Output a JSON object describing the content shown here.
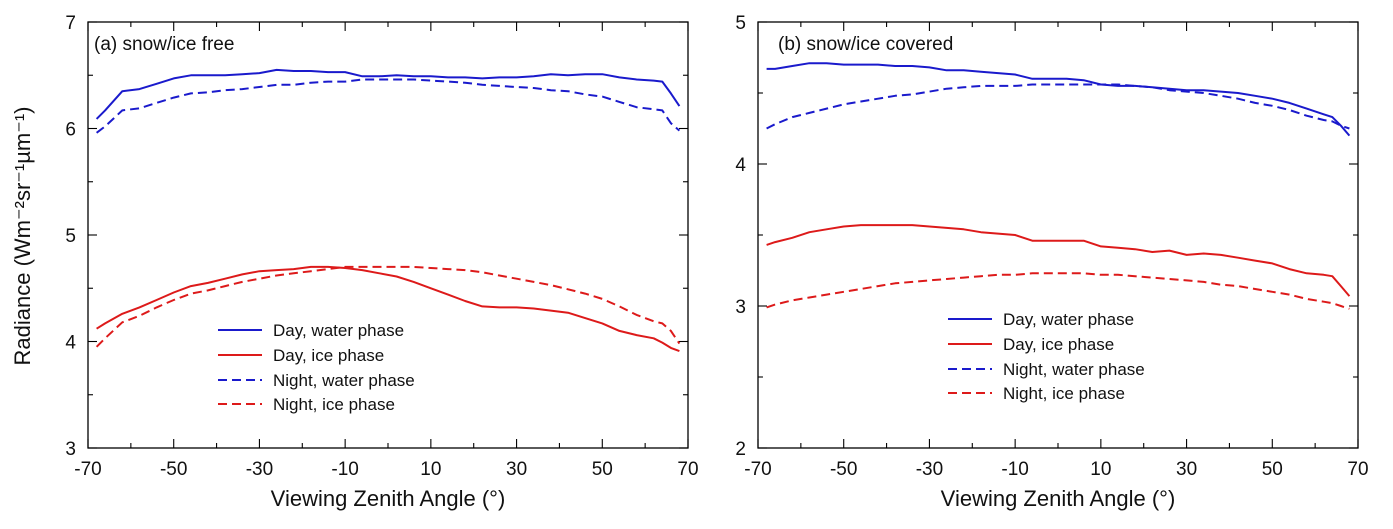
{
  "figure": {
    "ylabel": "Radiance (Wm⁻²sr⁻¹µm⁻¹)",
    "xlabel": "Viewing Zenith Angle (°)"
  },
  "legend": {
    "entries": [
      "Day, water phase",
      "Day, ice phase",
      "Night, water phase",
      "Night, ice phase"
    ]
  },
  "colors": {
    "water": "#1a1acc",
    "ice": "#dd1a1a"
  },
  "chart_data": [
    {
      "type": "line",
      "title": "(a) snow/ice free",
      "xlabel": "Viewing Zenith Angle (°)",
      "ylabel": "Radiance (Wm⁻²sr⁻¹µm⁻¹)",
      "xlim": [
        -70,
        70
      ],
      "ylim": [
        3,
        7
      ],
      "xticks": [
        -70,
        -50,
        -30,
        -10,
        10,
        30,
        50,
        70
      ],
      "yticks": [
        3,
        4,
        5,
        6,
        7
      ],
      "x": [
        -68,
        -66,
        -62,
        -58,
        -54,
        -50,
        -46,
        -42,
        -38,
        -34,
        -30,
        -26,
        -22,
        -18,
        -14,
        -10,
        -6,
        -2,
        2,
        6,
        10,
        14,
        18,
        22,
        26,
        30,
        34,
        38,
        42,
        46,
        50,
        54,
        58,
        62,
        64,
        66,
        68
      ],
      "series": [
        {
          "name": "Day, water phase",
          "style": "solid",
          "color": "#1a1acc",
          "values": [
            6.09,
            6.17,
            6.35,
            6.37,
            6.42,
            6.47,
            6.5,
            6.5,
            6.5,
            6.51,
            6.52,
            6.55,
            6.54,
            6.54,
            6.53,
            6.53,
            6.49,
            6.49,
            6.5,
            6.49,
            6.49,
            6.48,
            6.48,
            6.47,
            6.48,
            6.48,
            6.49,
            6.51,
            6.5,
            6.51,
            6.51,
            6.48,
            6.46,
            6.45,
            6.44,
            6.33,
            6.21
          ]
        },
        {
          "name": "Day, ice phase",
          "style": "solid",
          "color": "#dd1a1a",
          "values": [
            4.12,
            4.17,
            4.26,
            4.32,
            4.39,
            4.46,
            4.52,
            4.55,
            4.59,
            4.63,
            4.66,
            4.67,
            4.68,
            4.7,
            4.7,
            4.69,
            4.67,
            4.64,
            4.61,
            4.56,
            4.5,
            4.44,
            4.38,
            4.33,
            4.32,
            4.32,
            4.31,
            4.29,
            4.27,
            4.22,
            4.17,
            4.1,
            4.06,
            4.03,
            3.99,
            3.94,
            3.91
          ]
        },
        {
          "name": "Night, water phase",
          "style": "dashed",
          "color": "#1a1acc",
          "values": [
            5.96,
            6.02,
            6.17,
            6.19,
            6.24,
            6.29,
            6.33,
            6.34,
            6.36,
            6.37,
            6.39,
            6.41,
            6.41,
            6.43,
            6.44,
            6.44,
            6.46,
            6.46,
            6.46,
            6.46,
            6.45,
            6.44,
            6.43,
            6.41,
            6.4,
            6.39,
            6.38,
            6.36,
            6.35,
            6.32,
            6.3,
            6.25,
            6.2,
            6.18,
            6.17,
            6.05,
            5.98
          ]
        },
        {
          "name": "Night, ice phase",
          "style": "dashed",
          "color": "#dd1a1a",
          "values": [
            3.95,
            4.03,
            4.18,
            4.24,
            4.32,
            4.39,
            4.45,
            4.48,
            4.52,
            4.56,
            4.59,
            4.62,
            4.64,
            4.66,
            4.68,
            4.7,
            4.7,
            4.7,
            4.7,
            4.7,
            4.69,
            4.68,
            4.67,
            4.65,
            4.62,
            4.59,
            4.56,
            4.53,
            4.49,
            4.45,
            4.4,
            4.33,
            4.25,
            4.19,
            4.17,
            4.1,
            3.98
          ]
        }
      ]
    },
    {
      "type": "line",
      "title": "(b) snow/ice covered",
      "xlabel": "Viewing Zenith Angle (°)",
      "ylabel": "",
      "xlim": [
        -70,
        70
      ],
      "ylim": [
        2,
        5
      ],
      "xticks": [
        -70,
        -50,
        -30,
        -10,
        10,
        30,
        50,
        70
      ],
      "yticks": [
        2,
        3,
        4,
        5
      ],
      "x": [
        -68,
        -66,
        -62,
        -58,
        -54,
        -50,
        -46,
        -42,
        -38,
        -34,
        -30,
        -26,
        -22,
        -18,
        -14,
        -10,
        -6,
        -2,
        2,
        6,
        10,
        14,
        18,
        22,
        26,
        30,
        34,
        38,
        42,
        46,
        50,
        54,
        58,
        62,
        64,
        66,
        68
      ],
      "series": [
        {
          "name": "Day, water phase",
          "style": "solid",
          "color": "#1a1acc",
          "values": [
            4.67,
            4.67,
            4.69,
            4.71,
            4.71,
            4.7,
            4.7,
            4.7,
            4.69,
            4.69,
            4.68,
            4.66,
            4.66,
            4.65,
            4.64,
            4.63,
            4.6,
            4.6,
            4.6,
            4.59,
            4.56,
            4.55,
            4.55,
            4.54,
            4.53,
            4.52,
            4.52,
            4.51,
            4.5,
            4.48,
            4.46,
            4.43,
            4.39,
            4.35,
            4.33,
            4.27,
            4.2
          ]
        },
        {
          "name": "Day, ice phase",
          "style": "solid",
          "color": "#dd1a1a",
          "values": [
            3.43,
            3.45,
            3.48,
            3.52,
            3.54,
            3.56,
            3.57,
            3.57,
            3.57,
            3.57,
            3.56,
            3.55,
            3.54,
            3.52,
            3.51,
            3.5,
            3.46,
            3.46,
            3.46,
            3.46,
            3.42,
            3.41,
            3.4,
            3.38,
            3.39,
            3.36,
            3.37,
            3.36,
            3.34,
            3.32,
            3.3,
            3.26,
            3.23,
            3.22,
            3.21,
            3.14,
            3.07
          ]
        },
        {
          "name": "Night, water phase",
          "style": "dashed",
          "color": "#1a1acc",
          "values": [
            4.25,
            4.28,
            4.33,
            4.36,
            4.39,
            4.42,
            4.44,
            4.46,
            4.48,
            4.49,
            4.51,
            4.53,
            4.54,
            4.55,
            4.55,
            4.55,
            4.56,
            4.56,
            4.56,
            4.56,
            4.56,
            4.56,
            4.55,
            4.54,
            4.52,
            4.51,
            4.5,
            4.48,
            4.46,
            4.43,
            4.41,
            4.38,
            4.34,
            4.31,
            4.3,
            4.27,
            4.25
          ]
        },
        {
          "name": "Night, ice phase",
          "style": "dashed",
          "color": "#dd1a1a",
          "values": [
            2.99,
            3.01,
            3.04,
            3.06,
            3.08,
            3.1,
            3.12,
            3.14,
            3.16,
            3.17,
            3.18,
            3.19,
            3.2,
            3.21,
            3.22,
            3.22,
            3.23,
            3.23,
            3.23,
            3.23,
            3.22,
            3.22,
            3.21,
            3.2,
            3.19,
            3.18,
            3.17,
            3.15,
            3.14,
            3.12,
            3.1,
            3.08,
            3.05,
            3.03,
            3.02,
            3.0,
            2.98
          ]
        }
      ]
    }
  ]
}
